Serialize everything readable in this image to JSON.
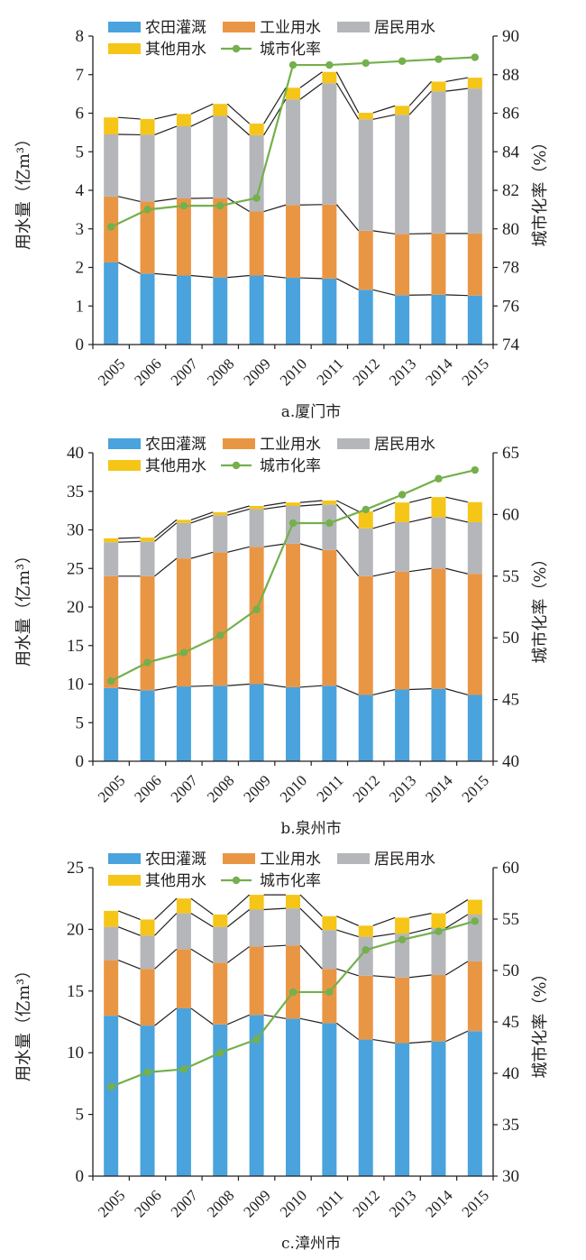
{
  "colors": {
    "agriculture": "#4aa3dc",
    "industry": "#e99644",
    "residential": "#b5b6ba",
    "other": "#f5c518",
    "urbanization": "#74b04c"
  },
  "chart_data": [
    {
      "type": "bar",
      "stacked": true,
      "title": "a.厦门市",
      "xlabel": "",
      "ylabel": "用水量（亿m³）",
      "y2label": "城市化率（%）",
      "categories": [
        "2005",
        "2006",
        "2007",
        "2008",
        "2009",
        "2010",
        "2011",
        "2012",
        "2013",
        "2014",
        "2015"
      ],
      "ylim": [
        0,
        8
      ],
      "yticks": [
        0,
        1,
        2,
        3,
        4,
        5,
        6,
        7,
        8
      ],
      "y2lim": [
        74,
        90
      ],
      "y2ticks": [
        74,
        76,
        78,
        80,
        82,
        84,
        86,
        88,
        90
      ],
      "legend": [
        "农田灌溉",
        "工业用水",
        "居民用水",
        "其他用水",
        "城市化率"
      ],
      "legend_position": "top",
      "series": [
        {
          "name": "农田灌溉",
          "type": "bar",
          "values": [
            2.13,
            1.84,
            1.79,
            1.74,
            1.79,
            1.73,
            1.71,
            1.42,
            1.28,
            1.29,
            1.27
          ]
        },
        {
          "name": "工业用水",
          "type": "bar",
          "values": [
            1.71,
            1.87,
            2.0,
            2.06,
            1.66,
            1.89,
            1.92,
            1.53,
            1.59,
            1.59,
            1.61
          ]
        },
        {
          "name": "居民用水",
          "type": "bar",
          "values": [
            1.61,
            1.73,
            1.87,
            2.13,
            1.98,
            2.74,
            3.15,
            2.89,
            3.09,
            3.69,
            3.76
          ]
        },
        {
          "name": "其他用水",
          "type": "bar",
          "values": [
            0.44,
            0.41,
            0.32,
            0.31,
            0.3,
            0.3,
            0.29,
            0.17,
            0.23,
            0.25,
            0.28
          ]
        },
        {
          "name": "城市化率",
          "type": "line",
          "axis": "right",
          "values": [
            80.1,
            81.0,
            81.2,
            81.2,
            81.6,
            88.5,
            88.5,
            88.6,
            88.7,
            88.8,
            88.9
          ]
        }
      ]
    },
    {
      "type": "bar",
      "stacked": true,
      "title": "b.泉州市",
      "xlabel": "",
      "ylabel": "用水量（亿m³）",
      "y2label": "城市化率（%）",
      "categories": [
        "2005",
        "2006",
        "2007",
        "2008",
        "2009",
        "2010",
        "2011",
        "2012",
        "2013",
        "2014",
        "2015"
      ],
      "ylim": [
        0,
        40
      ],
      "yticks": [
        0,
        5,
        10,
        15,
        20,
        25,
        30,
        35,
        40
      ],
      "y2lim": [
        40,
        65
      ],
      "y2ticks": [
        40,
        45,
        50,
        55,
        60,
        65
      ],
      "legend": [
        "农田灌溉",
        "工业用水",
        "居民用水",
        "其他用水",
        "城市化率"
      ],
      "legend_position": "top",
      "series": [
        {
          "name": "农田灌溉",
          "type": "bar",
          "values": [
            9.5,
            9.2,
            9.7,
            9.8,
            10.0,
            9.6,
            9.8,
            8.6,
            9.3,
            9.4,
            8.6
          ]
        },
        {
          "name": "工业用水",
          "type": "bar",
          "values": [
            14.5,
            14.8,
            16.6,
            17.3,
            17.8,
            18.6,
            17.6,
            15.4,
            15.3,
            15.6,
            15.7
          ]
        },
        {
          "name": "居民用水",
          "type": "bar",
          "values": [
            4.4,
            4.5,
            4.6,
            4.8,
            4.9,
            4.9,
            5.9,
            6.2,
            6.4,
            6.65,
            6.7
          ]
        },
        {
          "name": "其他用水",
          "type": "bar",
          "values": [
            0.5,
            0.5,
            0.4,
            0.4,
            0.4,
            0.45,
            0.5,
            2.2,
            2.55,
            2.6,
            2.6
          ]
        },
        {
          "name": "城市化率",
          "type": "line",
          "axis": "right",
          "values": [
            46.5,
            48.0,
            48.8,
            50.2,
            52.3,
            59.3,
            59.3,
            60.4,
            61.6,
            62.9,
            63.6
          ]
        }
      ]
    },
    {
      "type": "bar",
      "stacked": true,
      "title": "c.漳州市",
      "xlabel": "",
      "ylabel": "用水量（亿m³）",
      "y2label": "城市化率（%）",
      "categories": [
        "2005",
        "2006",
        "2007",
        "2008",
        "2009",
        "2010",
        "2011",
        "2012",
        "2013",
        "2014",
        "2015"
      ],
      "ylim": [
        0,
        25
      ],
      "yticks": [
        0,
        5,
        10,
        15,
        20,
        25
      ],
      "y2lim": [
        30,
        60
      ],
      "y2ticks": [
        30,
        35,
        40,
        45,
        50,
        55,
        60
      ],
      "legend": [
        "农田灌溉",
        "工业用水",
        "居民用水",
        "其他用水",
        "城市化率"
      ],
      "legend_position": "top",
      "series": [
        {
          "name": "农田灌溉",
          "type": "bar",
          "values": [
            13.0,
            12.2,
            13.6,
            12.3,
            13.06,
            12.77,
            12.4,
            11.07,
            10.78,
            10.92,
            11.75
          ]
        },
        {
          "name": "工业用水",
          "type": "bar",
          "values": [
            4.5,
            4.6,
            4.8,
            5.0,
            5.54,
            5.93,
            4.4,
            5.17,
            5.32,
            5.38,
            5.65
          ]
        },
        {
          "name": "居民用水",
          "type": "bar",
          "values": [
            2.7,
            2.7,
            2.9,
            2.9,
            3.0,
            3.0,
            3.15,
            3.16,
            3.56,
            3.8,
            3.8
          ]
        },
        {
          "name": "其他用水",
          "type": "bar",
          "values": [
            1.3,
            1.3,
            1.2,
            1.0,
            1.2,
            1.1,
            1.12,
            0.9,
            1.29,
            1.2,
            1.2
          ]
        },
        {
          "name": "城市化率",
          "type": "line",
          "axis": "right",
          "values": [
            38.7,
            40.1,
            40.4,
            42.0,
            43.3,
            47.9,
            47.9,
            52.0,
            53.0,
            53.8,
            54.8
          ]
        }
      ]
    }
  ]
}
